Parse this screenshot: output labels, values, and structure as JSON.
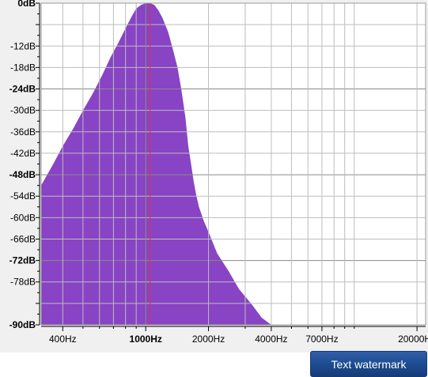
{
  "chart_data": {
    "type": "area",
    "y_axis": {
      "unit": "dB",
      "ticks": [
        {
          "value": 0,
          "label": "0dB",
          "bold": true
        },
        {
          "value": -6,
          "label": "",
          "bold": false
        },
        {
          "value": -12,
          "label": "-12dB",
          "bold": false
        },
        {
          "value": -18,
          "label": "-18dB",
          "bold": false
        },
        {
          "value": -24,
          "label": "-24dB",
          "bold": true
        },
        {
          "value": -30,
          "label": "-30dB",
          "bold": false
        },
        {
          "value": -36,
          "label": "-36dB",
          "bold": false
        },
        {
          "value": -42,
          "label": "-42dB",
          "bold": false
        },
        {
          "value": -48,
          "label": "-48dB",
          "bold": true
        },
        {
          "value": -54,
          "label": "-54dB",
          "bold": false
        },
        {
          "value": -60,
          "label": "-60dB",
          "bold": false
        },
        {
          "value": -66,
          "label": "-66dB",
          "bold": false
        },
        {
          "value": -72,
          "label": "-72dB",
          "bold": true
        },
        {
          "value": -78,
          "label": "-78dB",
          "bold": false
        },
        {
          "value": -84,
          "label": "",
          "bold": false
        },
        {
          "value": -90,
          "label": "-90dB",
          "bold": true
        }
      ],
      "ylim": [
        -90,
        0
      ]
    },
    "x_axis": {
      "scale": "log",
      "unit": "Hz",
      "xlim": [
        315,
        22000
      ],
      "ticks": [
        {
          "value": 400,
          "label": "400Hz",
          "bold": false
        },
        {
          "value": 1000,
          "label": "1000Hz",
          "bold": true
        },
        {
          "value": 2000,
          "label": "2000Hz",
          "bold": false
        },
        {
          "value": 4000,
          "label": "4000Hz",
          "bold": false
        },
        {
          "value": 7000,
          "label": "7000Hz",
          "bold": false
        },
        {
          "value": 20000,
          "label": "20000Hz",
          "bold": false
        }
      ],
      "minor_grid": [
        400,
        500,
        600,
        700,
        800,
        900,
        1000,
        2000,
        3000,
        4000,
        5000,
        6000,
        7000,
        8000,
        9000,
        10000,
        20000
      ]
    },
    "marker": {
      "x": 1050,
      "color": "#e03040"
    },
    "fill_color": "#8844c4",
    "grid": true,
    "series": [
      {
        "x": [
          315,
          360,
          400,
          450,
          500,
          560,
          620,
          680,
          740,
          800,
          860,
          900,
          950,
          1000,
          1050,
          1100,
          1150,
          1200,
          1280,
          1350,
          1420,
          1480,
          1550,
          1600,
          1650,
          1700,
          1750,
          1800,
          1900,
          2000,
          2200,
          2500,
          2800,
          3200,
          3600,
          4000,
          4500
        ],
        "y": [
          -51,
          -45,
          -40,
          -35,
          -30,
          -25,
          -20,
          -15,
          -11,
          -7,
          -3.5,
          -1.5,
          -0.5,
          0,
          0,
          -0.5,
          -2,
          -4,
          -8,
          -13,
          -18,
          -24,
          -32,
          -40,
          -45,
          -50,
          -54,
          -57,
          -61,
          -64,
          -70,
          -75,
          -80,
          -84,
          -88,
          -90,
          -91
        ]
      }
    ]
  },
  "button": {
    "label": "Text watermark"
  }
}
